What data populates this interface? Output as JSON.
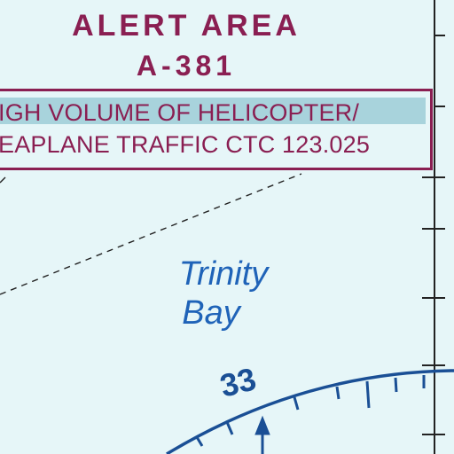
{
  "alert_area": {
    "title_line1": "ALERT AREA",
    "title_line2": "A-381",
    "notice_line1": "IGH VOLUME OF HELICOPTER/",
    "notice_line2": "EAPLANE TRAFFIC CTC 123.025"
  },
  "water_body": {
    "line1": "Trinity",
    "line2": "Bay"
  },
  "compass_rose": {
    "heading_label": "33"
  },
  "colors": {
    "background": "#e6f6f8",
    "alert_magenta": "#8a1f52",
    "water_label_blue": "#1f63b8",
    "compass_blue": "#1a4f95",
    "boundary_black": "#222222"
  }
}
